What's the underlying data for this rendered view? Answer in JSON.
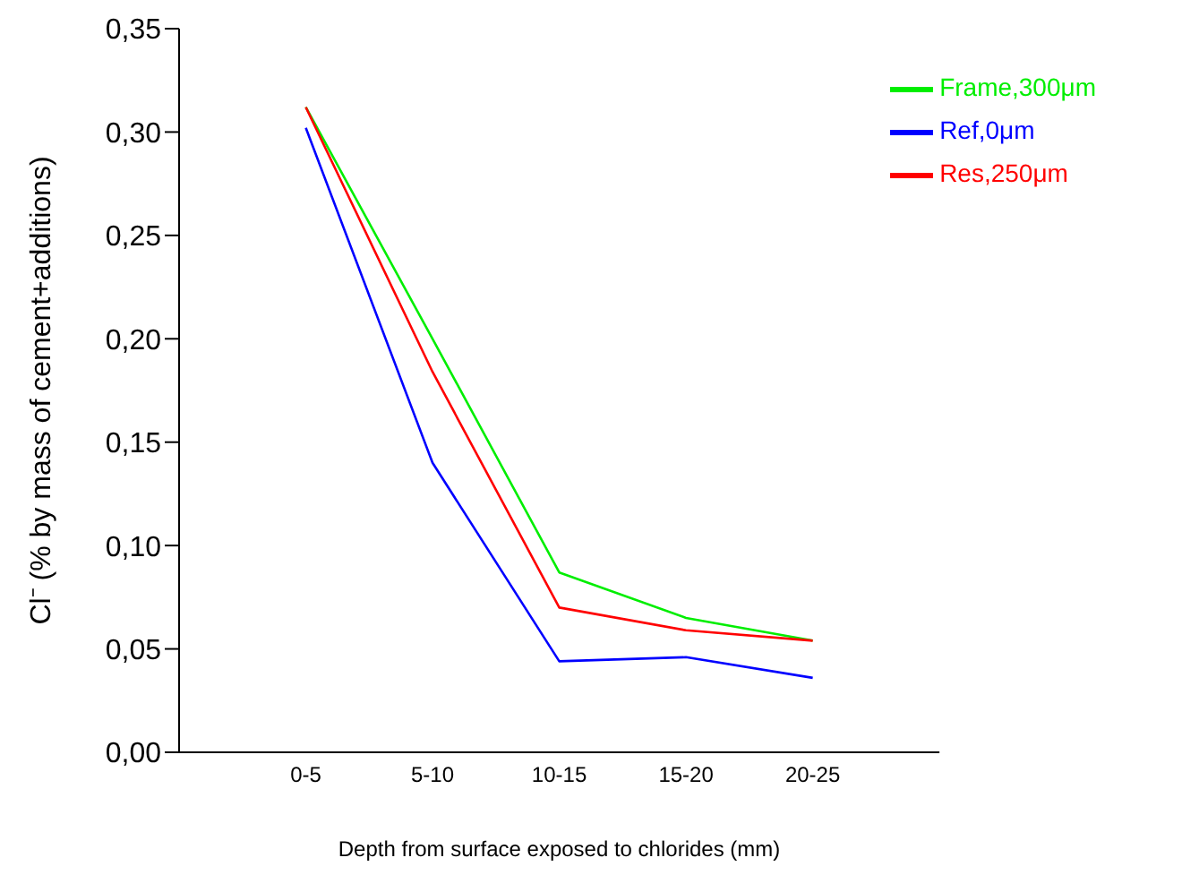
{
  "chart_data": {
    "type": "line",
    "xlabel": "Depth from surface exposed to chlorides (mm)",
    "ylabel": "Cl⁻ (% by mass of cement+additions)",
    "categories": [
      "0-5",
      "5-10",
      "10-15",
      "15-20",
      "20-25"
    ],
    "series": [
      {
        "name": "Frame,300μm",
        "color": "#00ee00",
        "values": [
          0.312,
          0.2,
          0.087,
          0.065,
          0.054
        ]
      },
      {
        "name": "Res,250μm",
        "color": "#ff0000",
        "values": [
          0.312,
          0.184,
          0.07,
          0.059,
          0.054
        ]
      },
      {
        "name": "Ref,0μm",
        "color": "#0000ff",
        "values": [
          0.302,
          0.14,
          0.044,
          0.046,
          0.036
        ]
      }
    ],
    "ylim": [
      0,
      0.35
    ],
    "yticks": [
      {
        "value": 0,
        "label": "0,00"
      },
      {
        "value": 0.05,
        "label": "0,05"
      },
      {
        "value": 0.1,
        "label": "0,10"
      },
      {
        "value": 0.15,
        "label": "0,15"
      },
      {
        "value": 0.2,
        "label": "0,20"
      },
      {
        "value": 0.25,
        "label": "0,25"
      },
      {
        "value": 0.3,
        "label": "0,30"
      },
      {
        "value": 0.35,
        "label": "0,35"
      }
    ],
    "grid": false,
    "legend": "top right",
    "marker": "none",
    "line_style": "solid"
  }
}
